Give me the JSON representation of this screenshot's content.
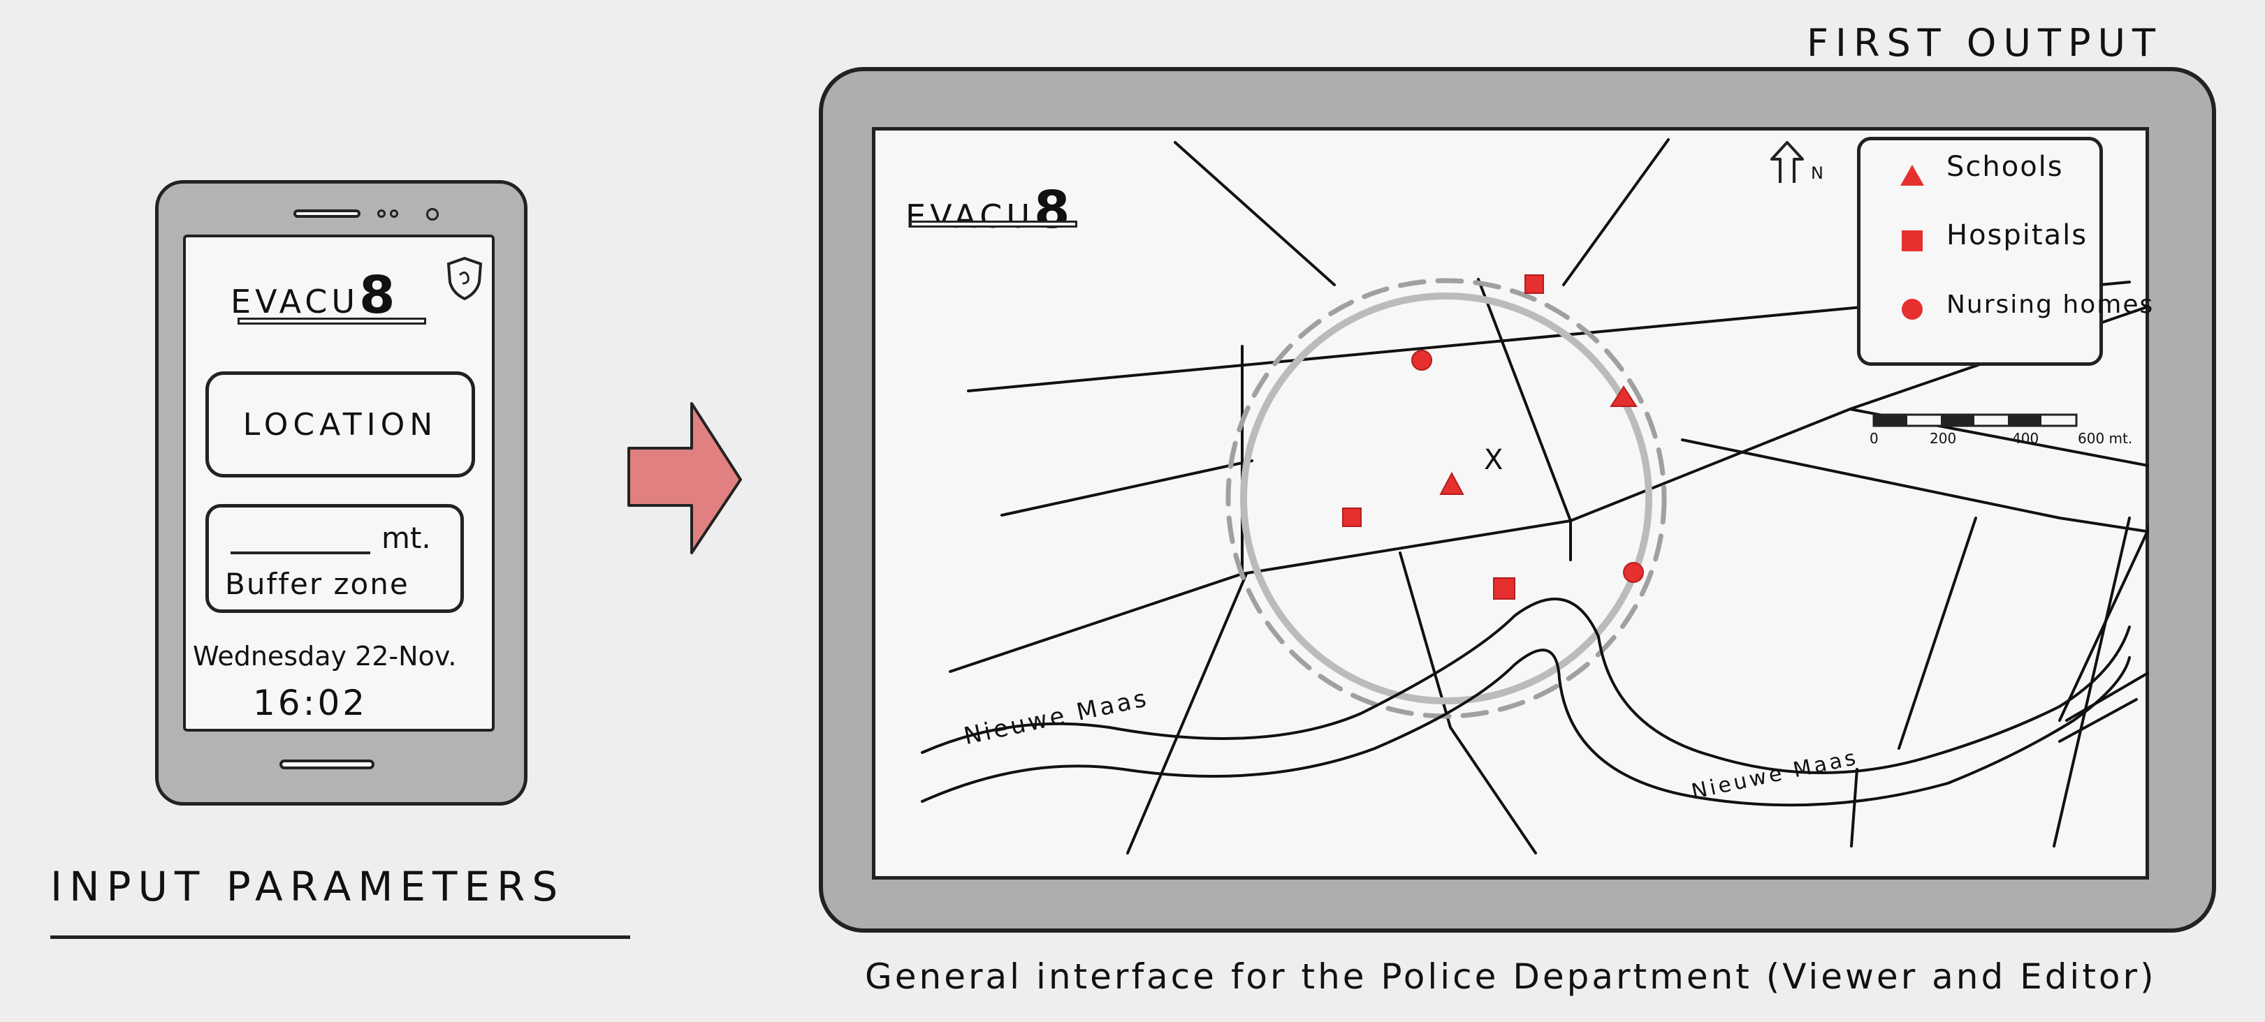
{
  "phone": {
    "logo_text": "EVACU",
    "logo_digit": "8",
    "location_button": "LOCATION",
    "buffer_unit": "mt.",
    "buffer_label": "Buffer zone",
    "date": "Wednesday 22-Nov.",
    "time": "16:02"
  },
  "labels": {
    "input_parameters": "INPUT PARAMETERS",
    "first_output": "FIRST OUTPUT",
    "caption": "General interface for the Police Department (Viewer and Editor)"
  },
  "tablet": {
    "logo_text": "EVACU",
    "logo_digit": "8",
    "north_label": "N",
    "legend": [
      {
        "label": "Schools",
        "icon": "triangle"
      },
      {
        "label": "Hospitals",
        "icon": "square"
      },
      {
        "label": "Nursing homes",
        "icon": "circle"
      }
    ],
    "scale_ticks": [
      "0",
      "200",
      "400",
      "600 mt."
    ],
    "river_label_left": "Nieuwe Maas",
    "river_label_right": "Nieuwe Maas",
    "center_marker": "X"
  },
  "colors": {
    "accent_red": "#e62f2f",
    "arrow_fill": "#e08080",
    "frame_gray": "#b0b0b0"
  }
}
